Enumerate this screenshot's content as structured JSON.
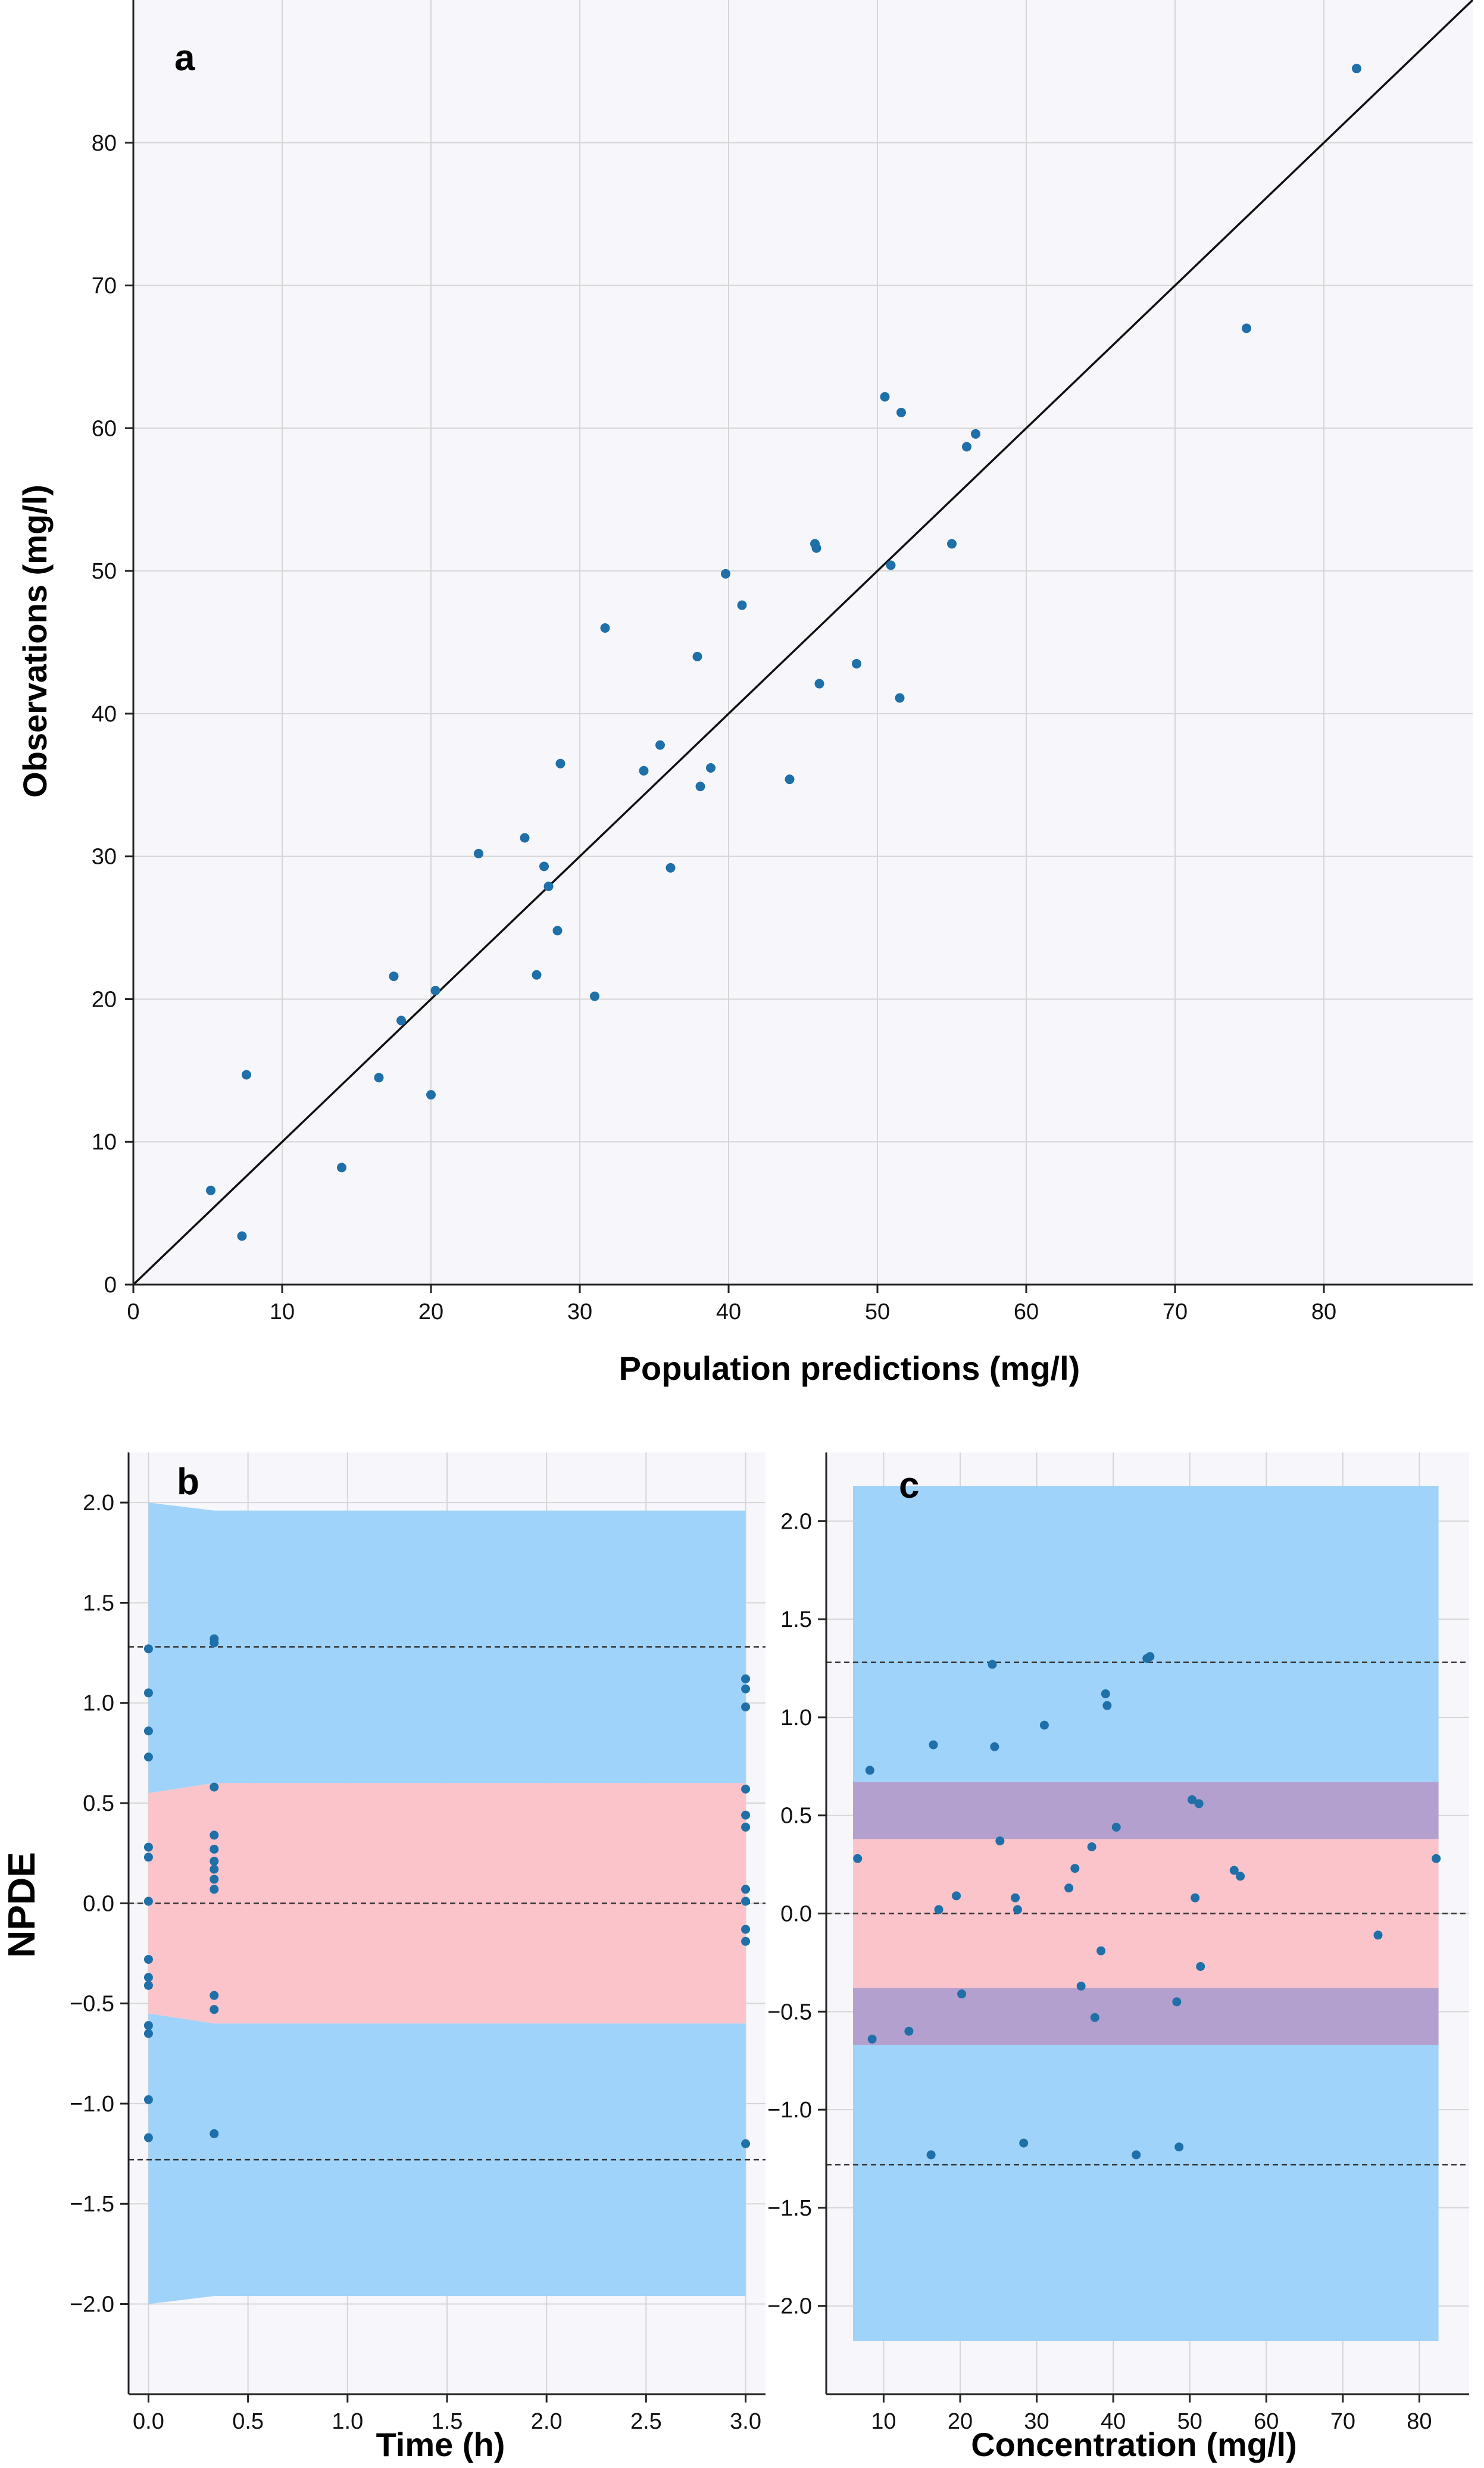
{
  "colors": {
    "point": "#1f6fa8",
    "outer_band": "#9fd3fa",
    "inner_band": "#fbc4cb",
    "overlap_band": "#b3a0cf",
    "grid": "#d6d6d6",
    "plot_bg": "#f7f7fb"
  },
  "chart_data": [
    {
      "panel": "a",
      "type": "scatter",
      "xlabel": "Population predictions (mg/l)",
      "ylabel": "Observations (mg/l)",
      "xlim": [
        0,
        90
      ],
      "ylim": [
        0,
        90
      ],
      "xticks": [
        0,
        10,
        20,
        30,
        40,
        50,
        60,
        70,
        80
      ],
      "yticks": [
        0,
        10,
        20,
        30,
        40,
        50,
        60,
        70,
        80
      ],
      "grid": true,
      "identity_line": true,
      "points": [
        [
          5.2,
          6.6
        ],
        [
          7.3,
          3.4
        ],
        [
          7.6,
          14.7
        ],
        [
          14.0,
          8.2
        ],
        [
          16.5,
          14.5
        ],
        [
          17.5,
          21.6
        ],
        [
          18.0,
          18.5
        ],
        [
          20.0,
          13.3
        ],
        [
          20.3,
          20.6
        ],
        [
          23.2,
          30.2
        ],
        [
          26.3,
          31.3
        ],
        [
          27.1,
          21.7
        ],
        [
          27.6,
          29.3
        ],
        [
          27.9,
          27.9
        ],
        [
          28.5,
          24.8
        ],
        [
          28.7,
          36.5
        ],
        [
          31.0,
          20.2
        ],
        [
          31.7,
          46.0
        ],
        [
          34.3,
          36.0
        ],
        [
          35.4,
          37.8
        ],
        [
          36.1,
          29.2
        ],
        [
          37.9,
          44.0
        ],
        [
          38.1,
          34.9
        ],
        [
          38.8,
          36.2
        ],
        [
          39.8,
          49.8
        ],
        [
          40.9,
          47.6
        ],
        [
          44.1,
          35.4
        ],
        [
          45.8,
          51.9
        ],
        [
          45.9,
          51.6
        ],
        [
          46.1,
          42.1
        ],
        [
          48.6,
          43.5
        ],
        [
          50.5,
          62.2
        ],
        [
          50.9,
          50.4
        ],
        [
          51.5,
          41.1
        ],
        [
          51.6,
          61.1
        ],
        [
          55.0,
          51.9
        ],
        [
          56.0,
          58.7
        ],
        [
          56.6,
          59.6
        ],
        [
          74.8,
          67.0
        ],
        [
          82.2,
          85.2
        ]
      ]
    },
    {
      "panel": "b",
      "type": "scatter",
      "xlabel": "Time (h)",
      "ylabel": "NPDE",
      "xlim": [
        -0.1,
        3.1
      ],
      "ylim": [
        -2.45,
        2.25
      ],
      "xticks": [
        0.0,
        0.5,
        1.0,
        1.5,
        2.0,
        2.5,
        3.0
      ],
      "xtick_labels": [
        "0.0",
        "0.5",
        "1.0",
        "1.5",
        "2.0",
        "2.5",
        "3.0"
      ],
      "yticks": [
        -2.0,
        -1.5,
        -1.0,
        -0.5,
        0.0,
        0.5,
        1.0,
        1.5,
        2.0
      ],
      "ytick_labels": [
        "−2.0",
        "−1.5",
        "−1.0",
        "−0.5",
        "0.0",
        "0.5",
        "1.0",
        "1.5",
        "2.0"
      ],
      "grid": true,
      "reference_lines": [
        -1.28,
        0.0,
        1.28
      ],
      "bands": {
        "x": [
          0.0,
          0.33,
          3.0
        ],
        "outer_upper": [
          2.0,
          1.96,
          1.96
        ],
        "outer_lower": [
          -2.0,
          -1.96,
          -1.96
        ],
        "inner_upper": [
          0.55,
          0.6,
          0.6
        ],
        "inner_lower": [
          -0.55,
          -0.6,
          -0.6
        ]
      },
      "points": [
        [
          0,
          1.27
        ],
        [
          0,
          1.05
        ],
        [
          0,
          0.86
        ],
        [
          0,
          0.73
        ],
        [
          0,
          0.28
        ],
        [
          0,
          0.23
        ],
        [
          0,
          0.01
        ],
        [
          0,
          -0.28
        ],
        [
          0,
          -0.37
        ],
        [
          0,
          -0.41
        ],
        [
          0,
          -0.61
        ],
        [
          0,
          -0.65
        ],
        [
          0,
          -0.98
        ],
        [
          0,
          -1.17
        ],
        [
          0.33,
          1.32
        ],
        [
          0.33,
          1.3
        ],
        [
          0.33,
          0.58
        ],
        [
          0.33,
          0.34
        ],
        [
          0.33,
          0.27
        ],
        [
          0.33,
          0.21
        ],
        [
          0.33,
          0.17
        ],
        [
          0.33,
          0.12
        ],
        [
          0.33,
          0.07
        ],
        [
          0.33,
          -0.46
        ],
        [
          0.33,
          -0.53
        ],
        [
          0.33,
          -1.15
        ],
        [
          3.0,
          1.12
        ],
        [
          3.0,
          1.07
        ],
        [
          3.0,
          0.98
        ],
        [
          3.0,
          0.57
        ],
        [
          3.0,
          0.44
        ],
        [
          3.0,
          0.38
        ],
        [
          3.0,
          0.07
        ],
        [
          3.0,
          0.01
        ],
        [
          3.0,
          -0.13
        ],
        [
          3.0,
          -0.19
        ],
        [
          3.0,
          -1.2
        ]
      ]
    },
    {
      "panel": "c",
      "type": "scatter",
      "xlabel": "Concentration (mg/l)",
      "ylabel": "",
      "xlim": [
        2.5,
        86.5
      ],
      "ylim": [
        -2.45,
        2.35
      ],
      "xticks": [
        10,
        20,
        30,
        40,
        50,
        60,
        70,
        80
      ],
      "yticks": [
        -2.0,
        -1.5,
        -1.0,
        -0.5,
        0.0,
        0.5,
        1.0,
        1.5,
        2.0
      ],
      "ytick_labels": [
        "−2.0",
        "−1.5",
        "−1.0",
        "−0.5",
        "0.0",
        "0.5",
        "1.0",
        "1.5",
        "2.0"
      ],
      "grid": true,
      "reference_lines": [
        -1.28,
        0.0,
        1.28
      ],
      "bands": {
        "x_range": [
          6.0,
          82.5
        ],
        "outer": [
          -2.18,
          2.18
        ],
        "inner_upper": [
          0.38,
          0.67
        ],
        "inner_lower": [
          -0.67,
          -0.38
        ]
      },
      "points": [
        [
          6.6,
          0.28
        ],
        [
          8.2,
          0.73
        ],
        [
          8.5,
          -0.64
        ],
        [
          13.3,
          -0.6
        ],
        [
          16.2,
          -1.23
        ],
        [
          16.5,
          0.86
        ],
        [
          17.2,
          0.02
        ],
        [
          19.5,
          0.09
        ],
        [
          20.2,
          -0.41
        ],
        [
          24.2,
          1.27
        ],
        [
          24.5,
          0.85
        ],
        [
          25.2,
          0.37
        ],
        [
          27.2,
          0.08
        ],
        [
          27.5,
          0.02
        ],
        [
          28.3,
          -1.17
        ],
        [
          31.0,
          0.96
        ],
        [
          34.2,
          0.13
        ],
        [
          35.0,
          0.23
        ],
        [
          35.8,
          -0.37
        ],
        [
          37.2,
          0.34
        ],
        [
          37.6,
          -0.53
        ],
        [
          38.4,
          -0.19
        ],
        [
          39.0,
          1.12
        ],
        [
          39.2,
          1.06
        ],
        [
          40.4,
          0.44
        ],
        [
          43.0,
          -1.23
        ],
        [
          44.4,
          1.3
        ],
        [
          44.8,
          1.31
        ],
        [
          48.3,
          -0.45
        ],
        [
          48.6,
          -1.19
        ],
        [
          50.3,
          0.58
        ],
        [
          50.7,
          0.08
        ],
        [
          51.2,
          0.56
        ],
        [
          51.4,
          -0.27
        ],
        [
          55.8,
          0.22
        ],
        [
          56.6,
          0.19
        ],
        [
          74.6,
          -0.11
        ],
        [
          82.2,
          0.28
        ]
      ]
    }
  ],
  "panels": {
    "a": {
      "letter": "a"
    },
    "b": {
      "letter": "b"
    },
    "c": {
      "letter": "c"
    }
  }
}
